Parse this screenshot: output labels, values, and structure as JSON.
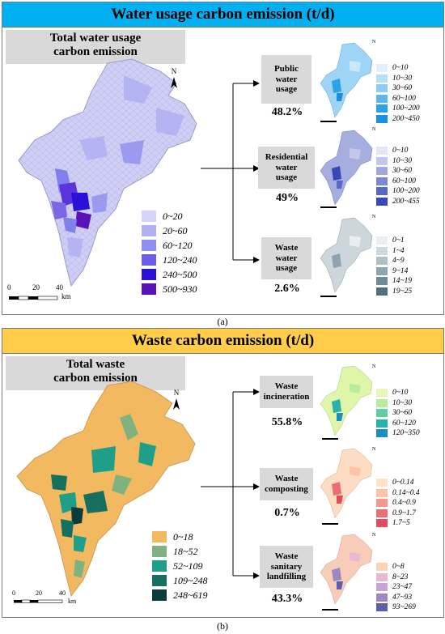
{
  "panel_a": {
    "title": "Water usage carbon emission (t/d)",
    "total_label_line1": "Total water usage",
    "total_label_line2": "carbon emission",
    "main_legend": [
      {
        "label": "0~20",
        "color": "#d4d4f7"
      },
      {
        "label": "20~60",
        "color": "#b0b0f3"
      },
      {
        "label": "60~120",
        "color": "#8e8ef0"
      },
      {
        "label": "120~240",
        "color": "#6b5de6"
      },
      {
        "label": "240~500",
        "color": "#2a10d8"
      },
      {
        "label": "500~930",
        "color": "#5a12b8"
      }
    ],
    "scale": {
      "ticks": [
        "0",
        "20",
        "40"
      ],
      "unit": "km"
    },
    "subs": [
      {
        "line1": "Public",
        "line2": "water",
        "line3": "usage",
        "pct": "48.2%",
        "legend": [
          {
            "label": "0~10",
            "color": "#dff1fc"
          },
          {
            "label": "10~30",
            "color": "#b6e0f8"
          },
          {
            "label": "30~60",
            "color": "#8ccbf3"
          },
          {
            "label": "60~100",
            "color": "#5ab7ef"
          },
          {
            "label": "100~200",
            "color": "#2aa3eb"
          },
          {
            "label": "200~450",
            "color": "#1b8fe0"
          }
        ]
      },
      {
        "line1": "Residential",
        "line2": "water",
        "line3": "usage",
        "pct": "49%",
        "legend": [
          {
            "label": "0~10",
            "color": "#e3e5f5"
          },
          {
            "label": "10~30",
            "color": "#c3c8ea"
          },
          {
            "label": "30~60",
            "color": "#a0a8de"
          },
          {
            "label": "60~100",
            "color": "#7d88d2"
          },
          {
            "label": "100~200",
            "color": "#5a68c5"
          },
          {
            "label": "200~455",
            "color": "#3848b5"
          }
        ]
      },
      {
        "line1": "Waste",
        "line2": "water",
        "line3": "usage",
        "pct": "2.6%",
        "legend": [
          {
            "label": "0~1",
            "color": "#e8eef1"
          },
          {
            "label": "1~4",
            "color": "#cdd9df"
          },
          {
            "label": "4~9",
            "color": "#aebfc8"
          },
          {
            "label": "9~14",
            "color": "#8ea4b0"
          },
          {
            "label": "14~19",
            "color": "#6f8a98"
          },
          {
            "label": "19~25",
            "color": "#507080"
          }
        ]
      }
    ],
    "caption": "(a)"
  },
  "panel_b": {
    "title": "Waste carbon emission (t/d)",
    "total_label_line1": "Total waste",
    "total_label_line2": "carbon emission",
    "main_legend": [
      {
        "label": "0~18",
        "color": "#f3b960"
      },
      {
        "label": "18~52",
        "color": "#7fb27f"
      },
      {
        "label": "52~109",
        "color": "#1f9f8a"
      },
      {
        "label": "109~248",
        "color": "#16705f"
      },
      {
        "label": "248~619",
        "color": "#0b3b3a"
      }
    ],
    "scale": {
      "ticks": [
        "0",
        "20",
        "40"
      ],
      "unit": "km"
    },
    "subs": [
      {
        "line1": "Waste",
        "line2": "incineration",
        "line3": "",
        "pct": "55.8%",
        "legend": [
          {
            "label": "0~10",
            "color": "#e6f7b8"
          },
          {
            "label": "10~30",
            "color": "#b8ec9c"
          },
          {
            "label": "30~60",
            "color": "#5fcfa2"
          },
          {
            "label": "60~120",
            "color": "#27b3ab"
          },
          {
            "label": "120~350",
            "color": "#1a8fbf"
          }
        ]
      },
      {
        "line1": "Waste",
        "line2": "composting",
        "line3": "",
        "pct": "0.7%",
        "legend": [
          {
            "label": "0~0.14",
            "color": "#fde2c8"
          },
          {
            "label": "0.14~0.4",
            "color": "#fbc4a8"
          },
          {
            "label": "0.4~0.9",
            "color": "#f59a8a"
          },
          {
            "label": "0.9~1.7",
            "color": "#ee6d72"
          },
          {
            "label": "1.7~5",
            "color": "#e34a5e"
          }
        ]
      },
      {
        "line1": "Waste",
        "line2": "sanitary",
        "line3": "landfilling",
        "pct": "43.3%",
        "legend": [
          {
            "label": "0~8",
            "color": "#fbd3b4"
          },
          {
            "label": "8~23",
            "color": "#e9b9d4"
          },
          {
            "label": "23~47",
            "color": "#c8a3d6"
          },
          {
            "label": "47~93",
            "color": "#9b86c6"
          },
          {
            "label": "93~269",
            "color": "#5d5db0"
          }
        ]
      }
    ],
    "caption": "(b)"
  }
}
